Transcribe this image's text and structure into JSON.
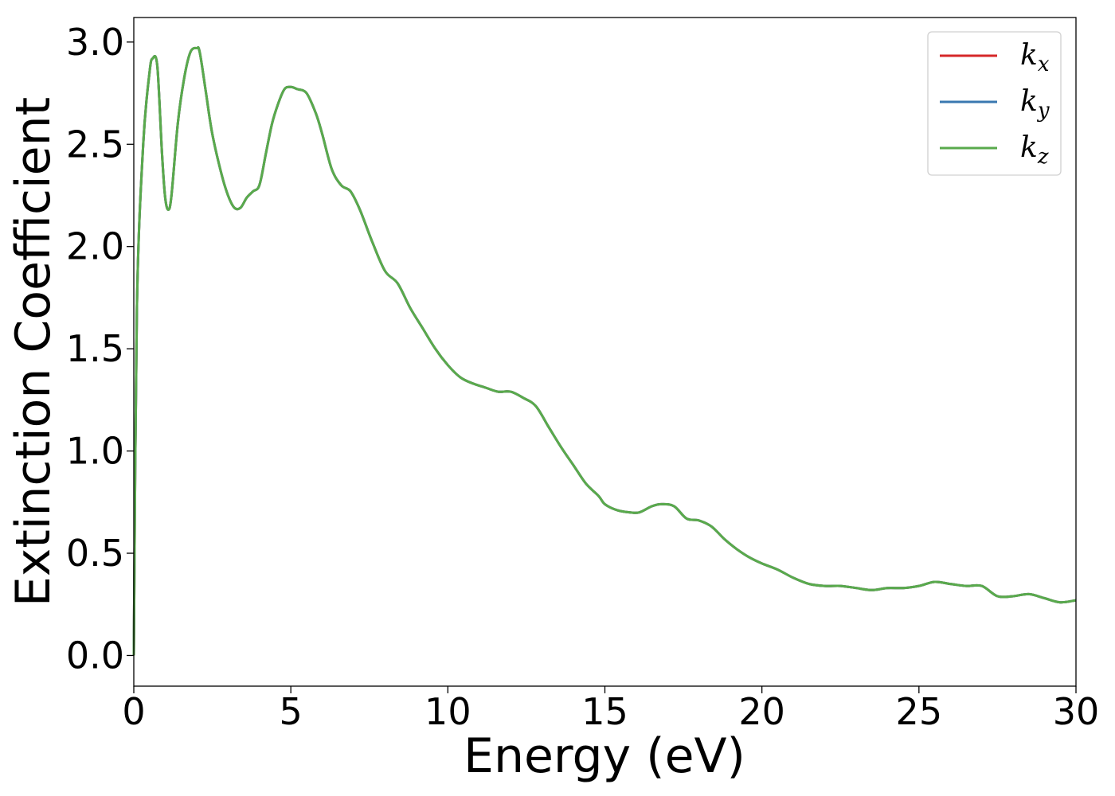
{
  "chart_data": {
    "type": "line",
    "xlabel": "Energy (eV)",
    "ylabel": "Extinction Coefficient",
    "xlim": [
      0,
      30
    ],
    "ylim": [
      -0.15,
      3.12
    ],
    "xticks": [
      0,
      5,
      10,
      15,
      20,
      25,
      30
    ],
    "xtick_labels": [
      "0",
      "5",
      "10",
      "15",
      "20",
      "25",
      "30"
    ],
    "yticks": [
      0.0,
      0.5,
      1.0,
      1.5,
      2.0,
      2.5,
      3.0
    ],
    "ytick_labels": [
      "0.0",
      "0.5",
      "1.0",
      "1.5",
      "2.0",
      "2.5",
      "3.0"
    ],
    "grid": false,
    "legend_position": "top-right",
    "series": [
      {
        "name": "k",
        "sub": "x",
        "color": "#d62728"
      },
      {
        "name": "k",
        "sub": "y",
        "color": "#3a78b0"
      },
      {
        "name": "k",
        "sub": "z",
        "color": "#59aa4c"
      }
    ],
    "x": [
      0,
      0.1,
      0.3,
      0.5,
      0.6,
      0.75,
      0.9,
      1.0,
      1.1,
      1.2,
      1.4,
      1.6,
      1.8,
      2.0,
      2.1,
      2.3,
      2.5,
      2.8,
      3.0,
      3.2,
      3.4,
      3.6,
      3.8,
      4.0,
      4.2,
      4.4,
      4.6,
      4.8,
      5.0,
      5.2,
      5.5,
      5.8,
      6.0,
      6.3,
      6.6,
      6.9,
      7.2,
      7.6,
      8.0,
      8.4,
      8.8,
      9.2,
      9.6,
      10.0,
      10.4,
      10.8,
      11.2,
      11.6,
      12.0,
      12.4,
      12.8,
      13.2,
      13.6,
      14.0,
      14.4,
      14.8,
      15.0,
      15.4,
      15.8,
      16.1,
      16.5,
      16.8,
      17.2,
      17.6,
      18.0,
      18.4,
      18.8,
      19.2,
      19.6,
      20.0,
      20.5,
      21.0,
      21.5,
      22.0,
      22.5,
      23.0,
      23.5,
      24.0,
      24.5,
      25.0,
      25.5,
      26.0,
      26.5,
      27.0,
      27.5,
      28.0,
      28.5,
      29.0,
      29.5,
      30.0
    ],
    "y": [
      0.0,
      1.7,
      2.5,
      2.85,
      2.92,
      2.88,
      2.45,
      2.24,
      2.18,
      2.25,
      2.6,
      2.82,
      2.95,
      2.97,
      2.95,
      2.75,
      2.55,
      2.35,
      2.25,
      2.19,
      2.19,
      2.24,
      2.27,
      2.3,
      2.45,
      2.6,
      2.7,
      2.77,
      2.78,
      2.77,
      2.75,
      2.65,
      2.55,
      2.38,
      2.3,
      2.27,
      2.18,
      2.02,
      1.88,
      1.82,
      1.7,
      1.6,
      1.5,
      1.42,
      1.36,
      1.33,
      1.31,
      1.29,
      1.29,
      1.26,
      1.22,
      1.12,
      1.02,
      0.93,
      0.84,
      0.78,
      0.74,
      0.71,
      0.7,
      0.7,
      0.73,
      0.74,
      0.73,
      0.67,
      0.66,
      0.63,
      0.57,
      0.52,
      0.48,
      0.45,
      0.42,
      0.38,
      0.35,
      0.34,
      0.34,
      0.33,
      0.32,
      0.33,
      0.33,
      0.34,
      0.36,
      0.35,
      0.34,
      0.34,
      0.29,
      0.29,
      0.3,
      0.28,
      0.26,
      0.27
    ]
  }
}
